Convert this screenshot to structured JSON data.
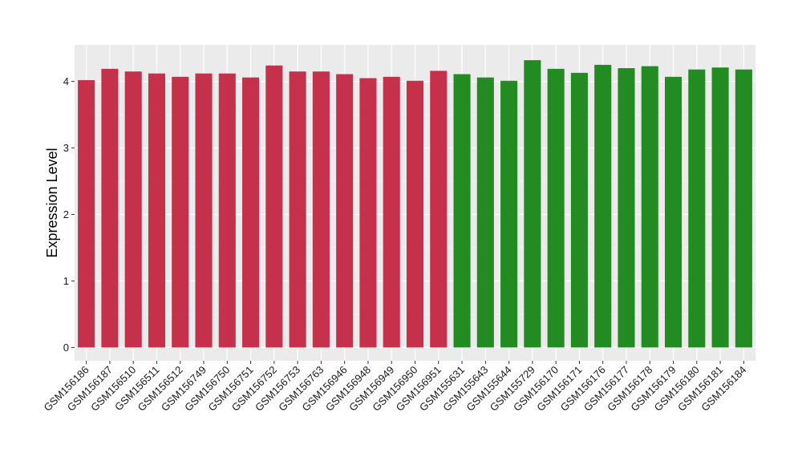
{
  "chart_data": {
    "type": "bar",
    "title": "",
    "xlabel": "",
    "ylabel": "Expression Level",
    "ylim": [
      -0.2,
      4.55
    ],
    "yticks": [
      0,
      1,
      2,
      3,
      4
    ],
    "grid": true,
    "background": "#ebebeb",
    "categories": [
      "GSM156186",
      "GSM156187",
      "GSM156510",
      "GSM156511",
      "GSM156512",
      "GSM156749",
      "GSM156750",
      "GSM156751",
      "GSM156752",
      "GSM156753",
      "GSM156763",
      "GSM156946",
      "GSM156948",
      "GSM156949",
      "GSM156950",
      "GSM156951",
      "GSM155631",
      "GSM155643",
      "GSM155644",
      "GSM155729",
      "GSM156170",
      "GSM156171",
      "GSM156176",
      "GSM156177",
      "GSM156178",
      "GSM156179",
      "GSM156180",
      "GSM156181",
      "GSM156184"
    ],
    "values": [
      4.02,
      4.19,
      4.15,
      4.12,
      4.07,
      4.12,
      4.12,
      4.06,
      4.24,
      4.15,
      4.15,
      4.11,
      4.05,
      4.07,
      4.01,
      4.16,
      4.11,
      4.06,
      4.01,
      4.32,
      4.19,
      4.13,
      4.25,
      4.2,
      4.23,
      4.07,
      4.18,
      4.21,
      4.18
    ],
    "groups": [
      "g1",
      "g1",
      "g1",
      "g1",
      "g1",
      "g1",
      "g1",
      "g1",
      "g1",
      "g1",
      "g1",
      "g1",
      "g1",
      "g1",
      "g1",
      "g1",
      "g2",
      "g2",
      "g2",
      "g2",
      "g2",
      "g2",
      "g2",
      "g2",
      "g2",
      "g2",
      "g2",
      "g2",
      "g2"
    ],
    "colors": {
      "g1": "#c5314a",
      "g2": "#228b22"
    }
  }
}
